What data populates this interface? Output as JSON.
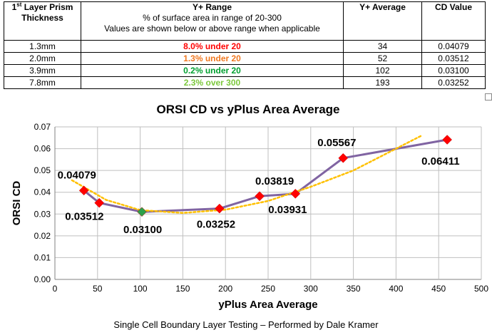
{
  "table": {
    "headers": {
      "thickness_line1": "1",
      "thickness_sup": "st",
      "thickness_line1_rest": " Layer Prism",
      "thickness_line2": "Thickness",
      "range_title": "Y+ Range",
      "range_line2": "% of surface area in range of 20-300",
      "range_line3": "Values are shown below or above range when applicable",
      "average": "Y+ Average",
      "cd": "CD Value"
    },
    "rows": [
      {
        "thickness": "1.3mm",
        "range": "8.0% under 20",
        "range_color": "#ff0000",
        "average": "34",
        "cd": "0.04079"
      },
      {
        "thickness": "2.0mm",
        "range": "1.3% under 20",
        "range_color": "#f07820",
        "average": "52",
        "cd": "0.03512"
      },
      {
        "thickness": "3.9mm",
        "range": "0.2% under 20",
        "range_color": "#00a030",
        "average": "102",
        "cd": "0.03100"
      },
      {
        "thickness": "7.8mm",
        "range": "2.3% over 300",
        "range_color": "#7cc83c",
        "average": "193",
        "cd": "0.03252"
      }
    ]
  },
  "chart_data": {
    "type": "line",
    "title": "ORSI CD vs yPlus Area Average",
    "xlabel": "yPlus Area Average",
    "ylabel": "ORSI CD",
    "xlim": [
      0,
      500
    ],
    "ylim": [
      0,
      0.07
    ],
    "xticks": [
      "0",
      "50",
      "100",
      "150",
      "200",
      "250",
      "300",
      "350",
      "400",
      "450",
      "500"
    ],
    "yticks": [
      "0.00",
      "0.01",
      "0.02",
      "0.03",
      "0.04",
      "0.05",
      "0.06",
      "0.07"
    ],
    "grid": true,
    "series": [
      {
        "line_color": "#8064a2",
        "points": [
          {
            "x": 34,
            "y": 0.04079,
            "label": "0.04079",
            "marker_color": "#ff0000"
          },
          {
            "x": 52,
            "y": 0.03512,
            "label": "0.03512",
            "marker_color": "#ff0000"
          },
          {
            "x": 102,
            "y": 0.031,
            "label": "0.03100",
            "marker_color": "#2ca04a"
          },
          {
            "x": 193,
            "y": 0.03252,
            "label": "0.03252",
            "marker_color": "#ff0000"
          },
          {
            "x": 240,
            "y": 0.03819,
            "label": "0.03819",
            "marker_color": "#ff0000"
          },
          {
            "x": 282,
            "y": 0.03931,
            "label": "0.03931",
            "marker_color": "#ff0000"
          },
          {
            "x": 338,
            "y": 0.05567,
            "label": "0.05567",
            "marker_color": "#ff0000"
          },
          {
            "x": 460,
            "y": 0.06411,
            "label": "0.06411",
            "marker_color": "#ff0000"
          }
        ]
      }
    ],
    "trendline": {
      "style": "dotted",
      "color": "#ffc000",
      "x": [
        20,
        60,
        100,
        150,
        200,
        250,
        300,
        350,
        400,
        430
      ],
      "y": [
        0.0455,
        0.0365,
        0.0318,
        0.0305,
        0.032,
        0.036,
        0.0425,
        0.05,
        0.06,
        0.066
      ]
    }
  },
  "footer": "Single Cell Boundary Layer Testing – Performed by Dale Kramer"
}
